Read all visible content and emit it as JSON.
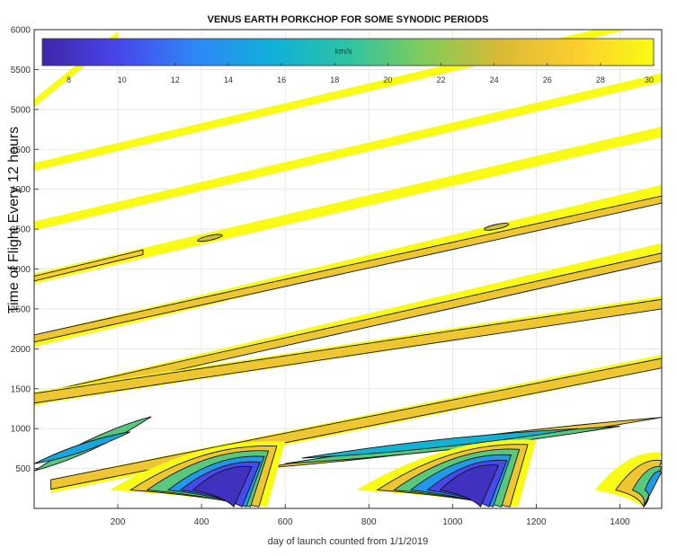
{
  "chart_data": {
    "type": "contour",
    "title": "VENUS EARTH PORKCHOP FOR SOME SYNODIC PERIODS",
    "xlabel": "day of launch counted from 1/1/2019",
    "ylabel": "Time of Flight Every 12 hours",
    "xlim": [
      0,
      1500
    ],
    "ylim": [
      0,
      6000
    ],
    "xticks": [
      200,
      400,
      600,
      800,
      1000,
      1200,
      1400
    ],
    "yticks": [
      500,
      1000,
      1500,
      2000,
      2500,
      3000,
      3500,
      4000,
      4500,
      5000,
      5500,
      6000
    ],
    "grid": true,
    "colorbar": {
      "label": "km/s",
      "placement": "top",
      "min": 7,
      "max": 30,
      "ticks": [
        8,
        10,
        12,
        14,
        16,
        18,
        20,
        22,
        24,
        26,
        28,
        30
      ],
      "colormap": [
        "#3e26a8",
        "#4746eb",
        "#2e87f7",
        "#10b0d9",
        "#2cc3a4",
        "#81cc59",
        "#d9ba36",
        "#fcce2e",
        "#f9fb14"
      ]
    },
    "bands": [
      {
        "x0": 0,
        "y0": 5080,
        "x1": 200,
        "y1": 5930,
        "speed": 30,
        "width": 100
      },
      {
        "x0": 0,
        "y0": 4280,
        "x1": 1500,
        "y1": 6150,
        "speed": 30,
        "width": 100
      },
      {
        "x0": 0,
        "y0": 3540,
        "x1": 1500,
        "y1": 5400,
        "speed": 30,
        "width": 110
      },
      {
        "x0": 0,
        "y0": 2880,
        "x1": 1500,
        "y1": 4720,
        "speed": 30,
        "width": 130
      },
      {
        "x0": 0,
        "y0": 2880,
        "x1": 260,
        "y1": 3210,
        "speed": 27,
        "width": 60
      },
      {
        "x0": 0,
        "y0": 2100,
        "x1": 1500,
        "y1": 3980,
        "speed": 30,
        "width": 150
      },
      {
        "x0": 0,
        "y0": 2130,
        "x1": 1500,
        "y1": 3870,
        "speed": 26,
        "width": 90
      },
      {
        "x0": 0,
        "y0": 1360,
        "x1": 1500,
        "y1": 3250,
        "speed": 30,
        "width": 150
      },
      {
        "x0": 0,
        "y0": 1380,
        "x1": 1500,
        "y1": 3150,
        "speed": 26,
        "width": 100
      },
      {
        "x0": 0,
        "y0": 1380,
        "x1": 280,
        "y1": 1640,
        "speed": 20,
        "width": 50
      },
      {
        "x0": 0,
        "y0": 1380,
        "x1": 1500,
        "y1": 2580,
        "speed": 30,
        "width": 160
      },
      {
        "x0": 0,
        "y0": 1380,
        "x1": 1500,
        "y1": 2560,
        "speed": 26,
        "width": 120
      },
      {
        "x0": 40,
        "y0": 280,
        "x1": 1500,
        "y1": 1840,
        "speed": 30,
        "width": 170
      },
      {
        "x0": 40,
        "y0": 300,
        "x1": 1500,
        "y1": 1820,
        "speed": 26,
        "width": 120
      }
    ],
    "lobes": [
      {
        "tip_x": 0,
        "tip_y": 470,
        "tail_x": 280,
        "tail_y": 1150,
        "speed": 20,
        "width": 280
      },
      {
        "tip_x": 0,
        "tip_y": 560,
        "tail_x": 230,
        "tail_y": 960,
        "speed": 15,
        "width": 200
      },
      {
        "tip_x": 540,
        "tip_y": 500,
        "tail_x": 1500,
        "tail_y": 1140,
        "speed": 26,
        "width": 230
      },
      {
        "tip_x": 600,
        "tip_y": 560,
        "tail_x": 1400,
        "tail_y": 1030,
        "speed": 20,
        "width": 220
      },
      {
        "tip_x": 640,
        "tip_y": 630,
        "tail_x": 1300,
        "tail_y": 1000,
        "speed": 16,
        "width": 190
      }
    ],
    "wedges": [
      {
        "apex_x": 180,
        "apex_y": 230,
        "right_x": 600,
        "top_y": 840,
        "speed": 30
      },
      {
        "apex_x": 230,
        "apex_y": 230,
        "right_x": 580,
        "top_y": 780,
        "speed": 26
      },
      {
        "apex_x": 270,
        "apex_y": 230,
        "right_x": 560,
        "top_y": 720,
        "speed": 20
      },
      {
        "apex_x": 320,
        "apex_y": 230,
        "right_x": 550,
        "top_y": 650,
        "speed": 14
      },
      {
        "apex_x": 350,
        "apex_y": 230,
        "right_x": 540,
        "top_y": 580,
        "speed": 10
      },
      {
        "apex_x": 380,
        "apex_y": 230,
        "right_x": 520,
        "top_y": 520,
        "speed": 8
      },
      {
        "apex_x": 770,
        "apex_y": 230,
        "right_x": 1200,
        "top_y": 860,
        "speed": 30
      },
      {
        "apex_x": 820,
        "apex_y": 230,
        "right_x": 1180,
        "top_y": 800,
        "speed": 26
      },
      {
        "apex_x": 860,
        "apex_y": 230,
        "right_x": 1160,
        "top_y": 740,
        "speed": 20
      },
      {
        "apex_x": 900,
        "apex_y": 230,
        "right_x": 1140,
        "top_y": 670,
        "speed": 14
      },
      {
        "apex_x": 940,
        "apex_y": 230,
        "right_x": 1130,
        "top_y": 600,
        "speed": 10
      },
      {
        "apex_x": 970,
        "apex_y": 230,
        "right_x": 1110,
        "top_y": 540,
        "speed": 8
      },
      {
        "apex_x": 1340,
        "apex_y": 230,
        "right_x": 1500,
        "top_y": 700,
        "speed": 30
      },
      {
        "apex_x": 1390,
        "apex_y": 230,
        "right_x": 1500,
        "top_y": 600,
        "speed": 26
      },
      {
        "apex_x": 1430,
        "apex_y": 230,
        "right_x": 1500,
        "top_y": 520,
        "speed": 20
      },
      {
        "apex_x": 1460,
        "apex_y": 230,
        "right_x": 1500,
        "top_y": 460,
        "speed": 14
      }
    ],
    "islands": [
      {
        "x": 420,
        "y": 3390,
        "speed": 24
      },
      {
        "x": 1105,
        "y": 3530,
        "speed": 24
      }
    ]
  }
}
